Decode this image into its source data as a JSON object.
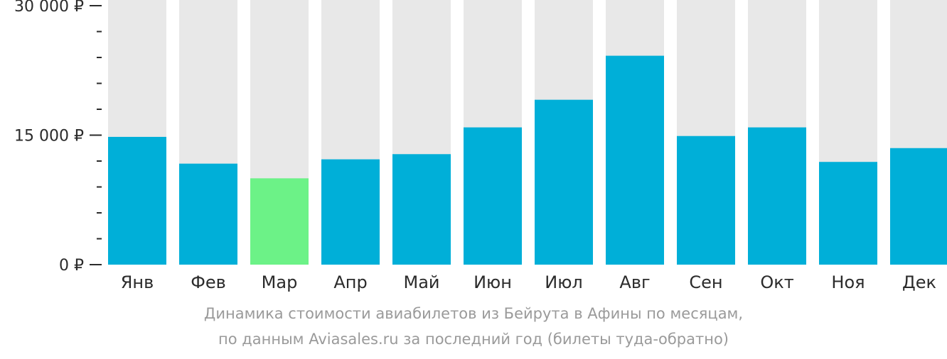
{
  "chart_data": {
    "type": "bar",
    "categories": [
      "Янв",
      "Фев",
      "Мар",
      "Апр",
      "Май",
      "Июн",
      "Июл",
      "Авг",
      "Сен",
      "Окт",
      "Ноя",
      "Дек"
    ],
    "values": [
      14800,
      11700,
      10000,
      12200,
      12800,
      15900,
      19100,
      24200,
      14900,
      15900,
      11900,
      13500
    ],
    "ylim": [
      0,
      30000
    ],
    "y_ticks": [
      {
        "value": 0,
        "label": "0 ₽"
      },
      {
        "value": 15000,
        "label": "15 000 ₽"
      },
      {
        "value": 30000,
        "label": "30 000 ₽"
      }
    ],
    "minor_tick_step": 3000,
    "highlight_index": 2,
    "colors": {
      "bar": "#00afd8",
      "highlight": "#6cf287",
      "track": "#e8e8e8",
      "axis": "#2b2b2b"
    },
    "xlabel": "",
    "ylabel": "",
    "title": ""
  },
  "caption": {
    "line1": "Динамика стоимости авиабилетов из Бейрута в Афины по месяцам,",
    "line2": "по данным Aviasales.ru за последний год (билеты туда-обратно)"
  }
}
